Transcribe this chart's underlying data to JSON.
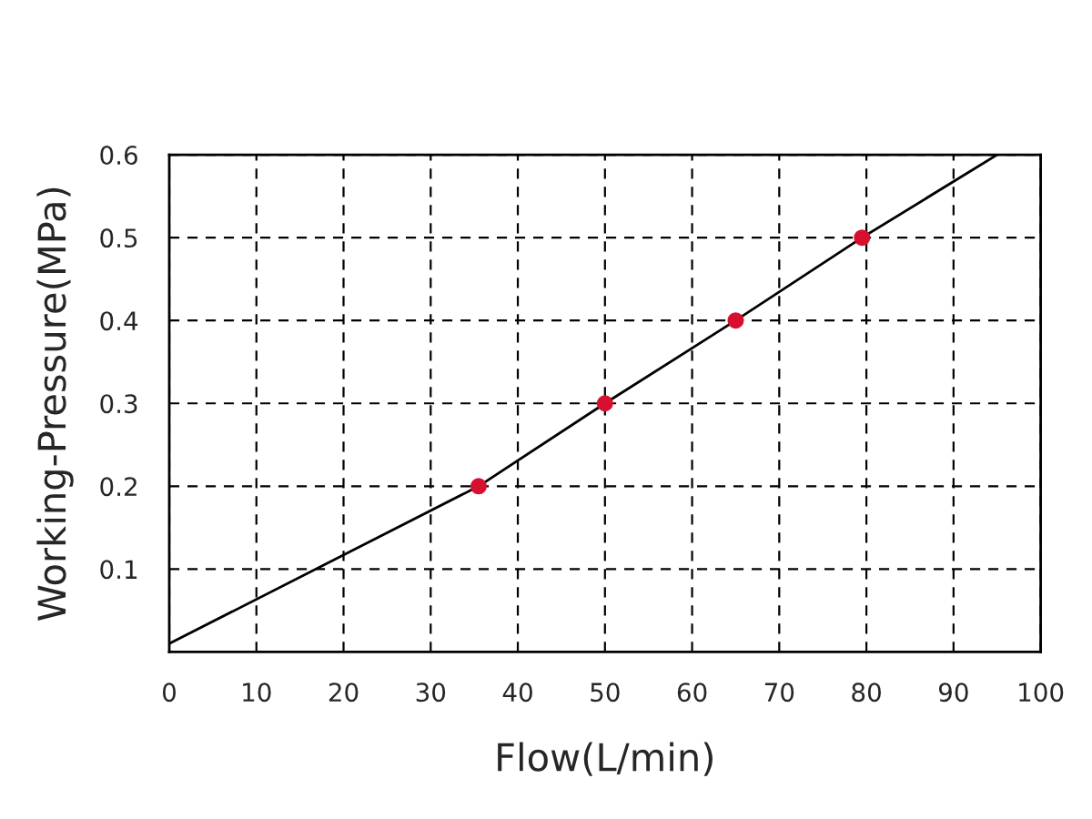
{
  "chart_data": {
    "type": "line",
    "xlabel": "Flow(L/min)",
    "ylabel": "Working-Pressure(MPa)",
    "series": [
      {
        "color": "#000000",
        "x": [
          0,
          35.5,
          50,
          65,
          79.5,
          95
        ],
        "values": [
          0.01,
          0.2,
          0.3,
          0.4,
          0.5,
          0.6
        ],
        "marker": "none"
      },
      {
        "type": "scatter",
        "color": "#d7102f",
        "x": [
          35.5,
          50,
          65,
          79.5
        ],
        "values": [
          0.2,
          0.3,
          0.4,
          0.5
        ],
        "marker": "circle"
      }
    ],
    "xlim": [
      0,
      100
    ],
    "ylim": [
      0,
      0.6
    ],
    "xticks": [
      0,
      10,
      20,
      30,
      40,
      50,
      60,
      70,
      80,
      90,
      100
    ],
    "yticks": [
      0.1,
      0.2,
      0.3,
      0.4,
      0.5,
      0.6
    ],
    "grid": true,
    "line_style": "solid",
    "legend": false
  }
}
